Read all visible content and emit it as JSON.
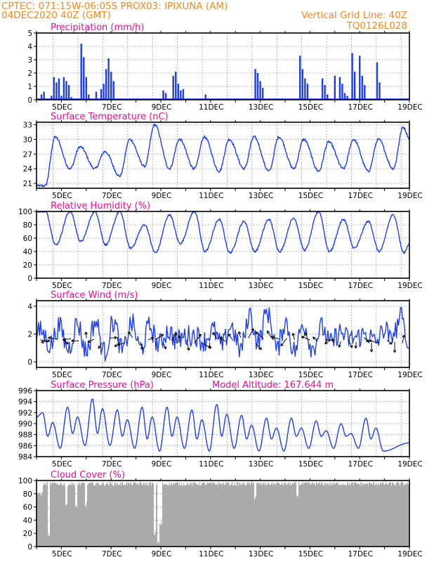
{
  "header": {
    "left_line1": "CPTEC:   071:15W-06:05S   PROX03: IPIXUNA (AM)",
    "left_line2": "04DEC2020  40Z (GMT)",
    "right_line1": "Vertical Grid Line: 40Z",
    "right_line2": "TQ0126L028"
  },
  "colors": {
    "header": "#f08a1c",
    "title": "#e0119a",
    "series": "#1f3fe6",
    "cloud": "#aaaaaa"
  },
  "chart_data": [
    {
      "type": "bar",
      "title": "Precipitation (mm/h)",
      "ylim": [
        0,
        5
      ],
      "yticks": [
        "0",
        "1",
        "2",
        "3",
        "4",
        "5"
      ],
      "xticks": [
        "5DEC",
        "7DEC",
        "9DEC",
        "11DEC",
        "13DEC",
        "15DEC",
        "17DEC",
        "19DEC"
      ],
      "x": [
        4.2,
        4.3,
        4.6,
        4.7,
        4.8,
        4.9,
        5.0,
        5.1,
        5.2,
        5.3,
        5.4,
        5.8,
        5.9,
        6.0,
        6.1,
        6.4,
        6.6,
        6.7,
        6.8,
        6.9,
        7.0,
        7.1,
        9.1,
        9.2,
        9.5,
        9.6,
        9.7,
        9.8,
        9.9,
        10.8,
        12.8,
        12.9,
        13.0,
        13.1,
        14.6,
        14.7,
        14.8,
        14.9,
        15.5,
        15.6,
        15.7,
        16.0,
        16.2,
        16.3,
        16.4,
        16.5,
        16.7,
        16.8,
        17.0,
        17.1,
        17.2,
        17.7,
        17.8
      ],
      "values": [
        0.4,
        0.6,
        0.3,
        1.7,
        1.3,
        1.6,
        0.3,
        1.7,
        1.4,
        1.1,
        0.2,
        4.2,
        3.2,
        1.7,
        0.4,
        0.6,
        0.8,
        1.2,
        2.3,
        3.1,
        2.1,
        1.4,
        0.7,
        0.5,
        1.8,
        2.1,
        1.2,
        0.7,
        0.8,
        0.4,
        2.3,
        2.0,
        1.4,
        0.9,
        3.3,
        2.3,
        1.6,
        1.2,
        1.6,
        1.1,
        0.4,
        1.8,
        1.7,
        1.2,
        0.5,
        0.3,
        3.5,
        2.1,
        3.3,
        1.8,
        1.1,
        2.8,
        1.3
      ]
    },
    {
      "type": "line",
      "title": "Surface Temperature (nC)",
      "ylim": [
        20,
        33.5
      ],
      "yticks": [
        "21",
        "24",
        "27",
        "30",
        "33"
      ],
      "xticks": [
        "5DEC",
        "7DEC",
        "9DEC",
        "11DEC",
        "13DEC",
        "15DEC",
        "17DEC",
        "19DEC"
      ],
      "min_values": [
        20.5,
        24.0,
        24.0,
        22.5,
        24.5,
        24.0,
        24.0,
        23.5,
        24.0,
        23.5,
        24.0,
        23.5,
        24.0,
        23.5,
        24.0
      ],
      "max_values": [
        30.5,
        28.5,
        27.5,
        30.0,
        33.0,
        30.0,
        30.5,
        30.0,
        30.5,
        30.5,
        30.0,
        29.5,
        30.0,
        30.0,
        32.5
      ],
      "end_value": 30.2
    },
    {
      "type": "line",
      "title": "Relative Humidity (%)",
      "ylim": [
        0,
        100
      ],
      "yticks": [
        "0",
        "20",
        "40",
        "60",
        "80",
        "100"
      ],
      "xticks": [
        "5DEC",
        "7DEC",
        "9DEC",
        "11DEC",
        "13DEC",
        "15DEC",
        "17DEC",
        "19DEC"
      ],
      "min_values": [
        50,
        55,
        50,
        45,
        38,
        52,
        40,
        38,
        40,
        40,
        42,
        40,
        45,
        40,
        38
      ],
      "max_values": [
        100,
        100,
        100,
        100,
        80,
        95,
        100,
        88,
        85,
        88,
        90,
        100,
        88,
        85,
        95
      ],
      "end_value": 52
    },
    {
      "type": "line",
      "title": "Surface Wind (m/s)",
      "ylim": [
        -0.4,
        4.4
      ],
      "yticks": [
        "0",
        "2",
        "4"
      ],
      "xticks": [
        "5DEC",
        "7DEC",
        "9DEC",
        "11DEC",
        "13DEC",
        "15DEC",
        "17DEC",
        "19DEC"
      ],
      "vectors": "wind-direction-arrows",
      "end_value": 1.0
    },
    {
      "type": "line",
      "title": "Surface Pressure (hPa)",
      "annotation": "Model Altitude: 167.644  m",
      "ylim": [
        984,
        996
      ],
      "yticks": [
        "984",
        "986",
        "988",
        "990",
        "992",
        "994",
        "996"
      ],
      "xticks": [
        "5DEC",
        "7DEC",
        "9DEC",
        "11DEC",
        "13DEC",
        "15DEC",
        "17DEC",
        "19DEC"
      ],
      "min_values": [
        985.5,
        986.0,
        986.0,
        985.5,
        985.0,
        985.5,
        985.0,
        985.5,
        985.0,
        985.0,
        985.5,
        985.5,
        985.5,
        985.0
      ],
      "max_values": [
        992.0,
        993.0,
        994.5,
        992.5,
        993.0,
        993.0,
        992.5,
        993.5,
        991.5,
        991.0,
        991.0,
        990.5,
        990.0,
        991.0
      ],
      "end_value": 986.5
    },
    {
      "type": "area",
      "title": "Cloud Cover (%)",
      "ylim": [
        0,
        100
      ],
      "yticks": [
        "0",
        "20",
        "40",
        "60",
        "80",
        "100"
      ],
      "xticks": [
        "5DEC",
        "7DEC",
        "9DEC",
        "11DEC",
        "13DEC",
        "15DEC",
        "17DEC",
        "19DEC"
      ],
      "typical_value": 95,
      "dips": [
        {
          "x": 4.5,
          "value": 10
        },
        {
          "x": 5.2,
          "value": 60
        },
        {
          "x": 5.6,
          "value": 55
        },
        {
          "x": 6.0,
          "value": 60
        },
        {
          "x": 8.75,
          "value": 15
        },
        {
          "x": 8.9,
          "value": 1
        },
        {
          "x": 9.0,
          "value": 30
        },
        {
          "x": 12.8,
          "value": 70
        },
        {
          "x": 14.5,
          "value": 75
        }
      ]
    }
  ]
}
